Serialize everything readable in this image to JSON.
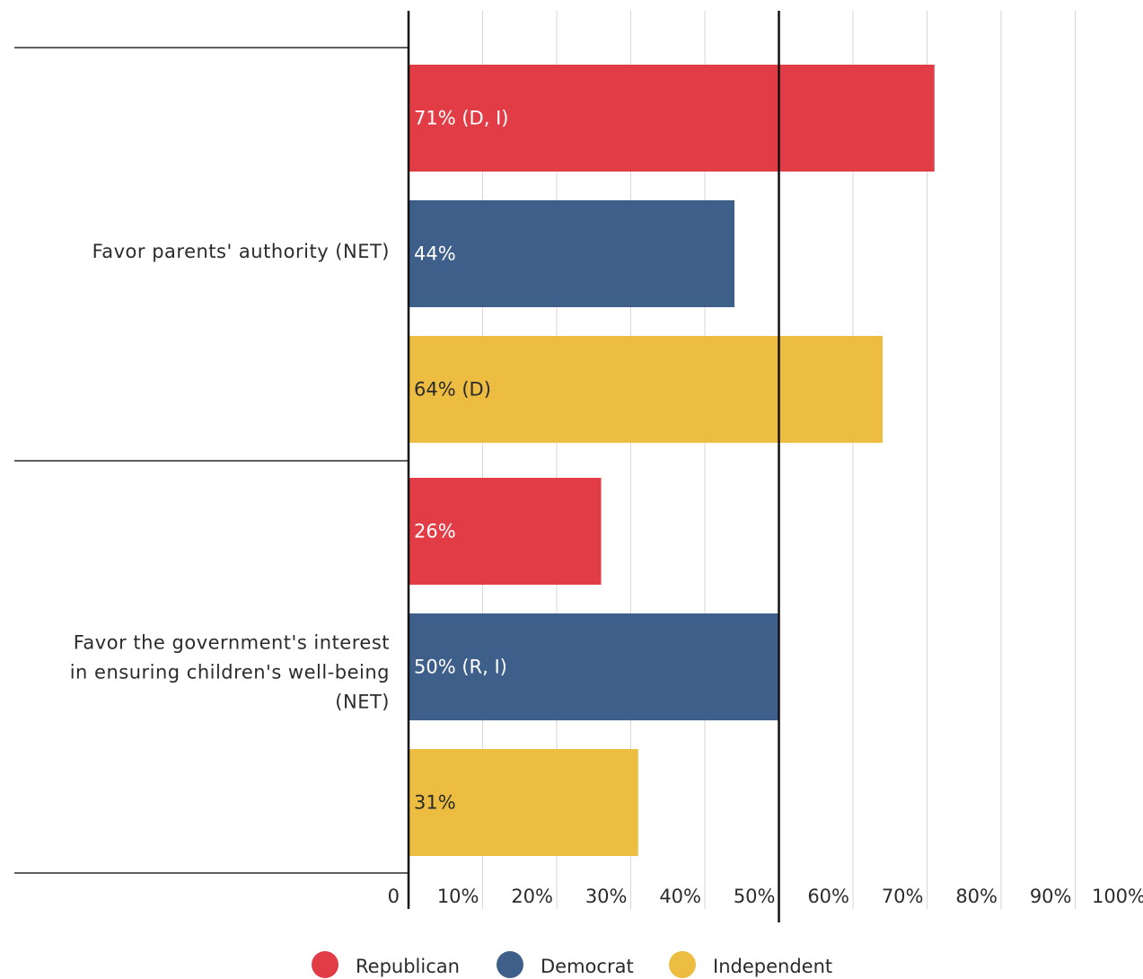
{
  "chart_data": {
    "type": "bar",
    "orientation": "horizontal",
    "categories": [
      "Favor parents' authority (NET)",
      "Favor the government's interest in ensuring children's well-being (NET)"
    ],
    "category_label_lines": [
      [
        "Favor parents' authority (NET)"
      ],
      [
        "Favor the government's interest",
        "in ensuring children's well-being",
        "(NET)"
      ]
    ],
    "series": [
      {
        "name": "Republican",
        "color": "#e23d46",
        "label_color": "#ffffff",
        "values": [
          71,
          26
        ],
        "labels": [
          "71% (D, I)",
          "26%"
        ]
      },
      {
        "name": "Democrat",
        "color": "#3d5f8a",
        "label_color": "#ffffff",
        "values": [
          44,
          50
        ],
        "labels": [
          "44%",
          "50% (R, I)"
        ]
      },
      {
        "name": "Independent",
        "color": "#ecbd41",
        "label_color": "#2b2b2b",
        "values": [
          64,
          31
        ],
        "labels": [
          "64% (D)",
          "31%"
        ]
      }
    ],
    "xlim": [
      0,
      100
    ],
    "x_ticks": [
      0,
      10,
      20,
      30,
      40,
      50,
      60,
      70,
      80,
      90,
      100
    ],
    "x_tick_labels": [
      "0",
      "10%",
      "20%",
      "30%",
      "40%",
      "50%",
      "60%",
      "70%",
      "80%",
      "90%",
      "100%"
    ],
    "reference_line": 50,
    "grid": true,
    "legend_position": "bottom"
  }
}
